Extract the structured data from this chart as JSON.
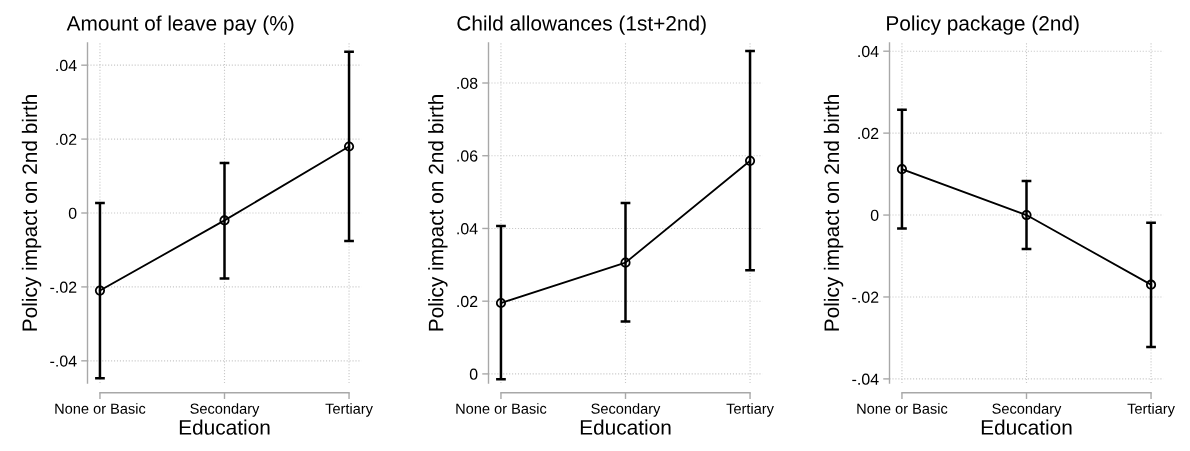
{
  "chart_data": [
    {
      "type": "line",
      "title": "Amount of leave pay (%)",
      "xlabel": "Education",
      "ylabel": "Policy impact on 2nd birth",
      "categories": [
        "None or Basic",
        "Secondary",
        "Tertiary"
      ],
      "values": [
        -0.021,
        -0.002,
        0.018
      ],
      "errors": [
        [
          -0.0447,
          0.0027
        ],
        [
          -0.0177,
          0.0135
        ],
        [
          -0.0076,
          0.0436
        ]
      ],
      "color": "#000000",
      "marker": "circle",
      "line_style": "solid",
      "grid": true,
      "ylim": [
        -0.046,
        0.046
      ],
      "yticks": [
        {
          "value": -0.04,
          "label": "-.04"
        },
        {
          "value": -0.02,
          "label": "-.02"
        },
        0,
        {
          "value": 0.02,
          "label": ".02"
        },
        {
          "value": 0.04,
          "label": ".04"
        }
      ]
    },
    {
      "type": "line",
      "title": "Child allowances (1st+2nd)",
      "xlabel": "Education",
      "ylabel": "Policy impact on 2nd birth",
      "categories": [
        "None or Basic",
        "Secondary",
        "Tertiary"
      ],
      "values": [
        0.0195,
        0.0306,
        0.0586
      ],
      "errors": [
        [
          -0.0015,
          0.0407
        ],
        [
          0.0144,
          0.047
        ],
        [
          0.0285,
          0.0888
        ]
      ],
      "color": "#000000",
      "marker": "circle",
      "line_style": "solid",
      "grid": true,
      "ylim": [
        -0.0025,
        0.091
      ],
      "yticks": [
        0,
        {
          "value": 0.02,
          "label": ".02"
        },
        {
          "value": 0.04,
          "label": ".04"
        },
        {
          "value": 0.06,
          "label": ".06"
        },
        {
          "value": 0.08,
          "label": ".08"
        }
      ]
    },
    {
      "type": "line",
      "title": "Policy package (2nd)",
      "xlabel": "Education",
      "ylabel": "Policy impact on 2nd birth",
      "categories": [
        "None or Basic",
        "Secondary",
        "Tertiary"
      ],
      "values": [
        0.0112,
        0.0,
        -0.017
      ],
      "errors": [
        [
          -0.0033,
          0.0257
        ],
        [
          -0.0083,
          0.0083
        ],
        [
          -0.0322,
          -0.0019
        ]
      ],
      "color": "#000000",
      "marker": "circle",
      "line_style": "solid",
      "grid": true,
      "ylim": [
        -0.041,
        0.042
      ],
      "yticks": [
        {
          "value": -0.04,
          "label": "-.04"
        },
        {
          "value": -0.02,
          "label": "-.02"
        },
        0,
        {
          "value": 0.02,
          "label": ".02"
        },
        {
          "value": 0.04,
          "label": ".04"
        }
      ]
    }
  ]
}
